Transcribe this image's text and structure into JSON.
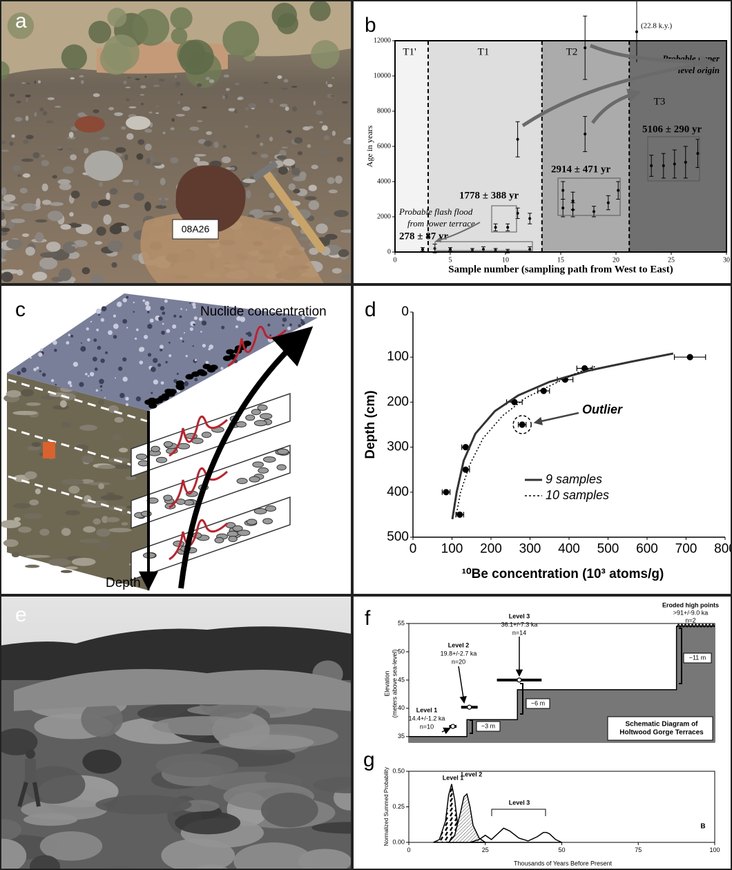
{
  "panel_labels": [
    "a",
    "b",
    "c",
    "d",
    "e",
    "f",
    "g"
  ],
  "photo_a": {
    "sample_tag": "08A26"
  },
  "diagram_c": {
    "axis_top": "Nuclide concentration",
    "axis_bottom": "Depth"
  },
  "chart_data": [
    {
      "type": "scatter",
      "xlabel": "Sample number (sampling path from West to East)",
      "ylabel": "Age in years",
      "xlim": [
        0,
        30
      ],
      "ylim": [
        0,
        12000
      ],
      "xticks": [
        0,
        5,
        10,
        15,
        20,
        25,
        30
      ],
      "yticks": [
        0,
        2000,
        4000,
        6000,
        8000,
        10000,
        12000
      ],
      "zones": [
        {
          "name": "T1'",
          "range": [
            0,
            3
          ],
          "color": "#f3f3f3"
        },
        {
          "name": "T1",
          "range": [
            3,
            13.3
          ],
          "color": "#dedede"
        },
        {
          "name": "T2",
          "range": [
            13.3,
            21.2
          ],
          "color": "#ababab"
        },
        {
          "name": "T3",
          "range": [
            21.2,
            30
          ],
          "color": "#707070"
        }
      ],
      "series": [
        {
          "style": "errorbar",
          "color": "#000000",
          "x": [
            2.5,
            3.6,
            5,
            7,
            8,
            9.1,
            10.2,
            12.2,
            9.1,
            10.2,
            11.1,
            12.2,
            11.1,
            17.2,
            17.2,
            15.2,
            15.2,
            16.1,
            16.1,
            18,
            19.3,
            20.2,
            23.2,
            24.3,
            25.3,
            26.3,
            27.4
          ],
          "values": [
            150,
            200,
            150,
            100,
            150,
            100,
            50,
            150,
            1400,
            1400,
            2200,
            1900,
            6400,
            6700,
            11600,
            3500,
            2500,
            2900,
            2400,
            2300,
            2800,
            3500,
            4900,
            4900,
            5000,
            5100,
            5600
          ],
          "errors": [
            100,
            250,
            100,
            100,
            150,
            100,
            100,
            150,
            200,
            200,
            300,
            300,
            1000,
            1000,
            1800,
            500,
            500,
            500,
            400,
            300,
            400,
            500,
            600,
            700,
            800,
            900,
            800
          ]
        }
      ],
      "annotations": [
        "(22.8 k.y.)",
        "Probable upper",
        "level origin",
        "278 ± 87 yr",
        "1778 ± 388 yr",
        "2914 ± 471 yr",
        "5106 ± 290 yr",
        "Probable flash flood",
        "from lower terrace"
      ]
    },
    {
      "type": "scatter",
      "xlabel": "¹⁰Be concentration (10³ atoms/g)",
      "ylabel": "Depth (cm)",
      "xlim": [
        0,
        800
      ],
      "ylim": [
        500,
        0
      ],
      "xticks": [
        0,
        100,
        200,
        300,
        400,
        500,
        600,
        700,
        800
      ],
      "yticks": [
        0,
        100,
        200,
        300,
        400,
        500
      ],
      "legend": "lower right",
      "series": [
        {
          "style": "xerrorbar",
          "color": "#000000",
          "x": [
            710,
            440,
            390,
            335,
            260,
            280,
            135,
            135,
            85,
            120
          ],
          "values": [
            100,
            125,
            150,
            175,
            200,
            250,
            300,
            350,
            400,
            450
          ],
          "x_errors": [
            40,
            20,
            20,
            15,
            20,
            10,
            10,
            10,
            10,
            10
          ]
        },
        {
          "name": "9 samples",
          "style": "solid",
          "color": "#333333",
          "x": [
            101,
            112,
            130,
            160,
            210,
            270,
            350,
            450,
            560,
            667
          ],
          "values": [
            460,
            400,
            330,
            270,
            220,
            185,
            155,
            130,
            110,
            92
          ]
        },
        {
          "name": "10 samples",
          "style": "dotted",
          "color": "#000000",
          "x": [
            110,
            122,
            145,
            180,
            230,
            290,
            360,
            420,
            470
          ],
          "values": [
            455,
            400,
            340,
            280,
            230,
            190,
            160,
            135,
            120
          ]
        }
      ],
      "annotations": [
        "Outlier"
      ]
    },
    {
      "type": "line",
      "ylabel": [
        "Elevation",
        "(meters above sea-level)"
      ],
      "xlim": [
        0,
        100
      ],
      "ylim": [
        34,
        55
      ],
      "yticks": [
        35,
        40,
        45,
        50,
        55
      ],
      "series": [
        {
          "style": "profile",
          "color": "#777777",
          "x": [
            0,
            19,
            19,
            35.5,
            35.5,
            87.5,
            87.5,
            100
          ],
          "values": [
            35,
            35,
            38,
            38,
            43.3,
            43.3,
            54.5,
            54.5
          ]
        },
        {
          "style": "xbar",
          "color": "#000000",
          "x": [
            14.4,
            19.8,
            36.1
          ],
          "values": [
            36.8,
            40.2,
            45
          ],
          "x_errors": [
            1.2,
            2.7,
            7.3
          ]
        }
      ],
      "annotations": [
        "Level 1",
        "14.4+/-1.2 ka",
        "n=10",
        "Level 2",
        "19.8+/-2.7 ka",
        "n=20",
        "Level 3",
        "36.1+/-7.3 ka",
        "n=14",
        "Eroded high points",
        ">91+/-9.0 ka",
        "n=2",
        "~3 m",
        "~6 m",
        "~11 m",
        "Schematic Diagram of",
        "Holtwood Gorge Terraces"
      ]
    },
    {
      "type": "line",
      "xlabel": "Thousands of Years Before Present",
      "ylabel": "Normalized Summed Probability",
      "xlim": [
        0,
        100
      ],
      "ylim": [
        0,
        0.5
      ],
      "xticks": [
        0,
        25,
        50,
        75,
        100
      ],
      "yticks": [
        {
          "value": 0,
          "label": "0.00"
        },
        {
          "value": 0.25,
          "label": "0.25"
        },
        {
          "value": 0.5,
          "label": "0.50"
        }
      ],
      "series": [
        {
          "name": "Level 1",
          "style": "density",
          "fill": "dashes",
          "color": "#000000",
          "x": [
            8,
            10,
            12,
            13,
            14,
            15,
            16,
            18,
            20
          ],
          "values": [
            0,
            0.02,
            0.15,
            0.33,
            0.41,
            0.3,
            0.12,
            0.02,
            0
          ]
        },
        {
          "name": "Level 2",
          "style": "density",
          "fill": "hatch",
          "color": "#000000",
          "x": [
            13,
            15,
            17,
            18,
            19,
            20,
            21,
            23,
            25
          ],
          "values": [
            0,
            0.05,
            0.22,
            0.32,
            0.34,
            0.25,
            0.12,
            0.03,
            0
          ]
        },
        {
          "name": "Level 3",
          "style": "density",
          "fill": "none",
          "color": "#000000",
          "x": [
            20,
            23,
            25,
            27,
            29,
            31,
            33,
            36,
            39,
            42,
            44,
            45,
            46,
            48,
            50
          ],
          "values": [
            0,
            0.02,
            0.05,
            0.02,
            0.06,
            0.1,
            0.08,
            0.03,
            0.01,
            0.04,
            0.07,
            0.07,
            0.06,
            0.02,
            0
          ]
        }
      ],
      "annotations": [
        "B"
      ]
    }
  ]
}
